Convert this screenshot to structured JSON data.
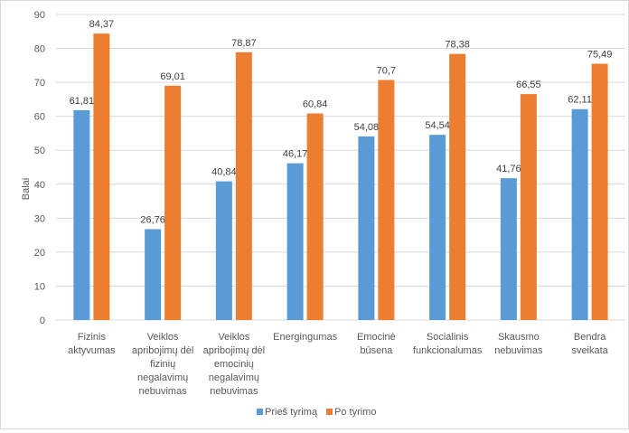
{
  "chart_data": {
    "type": "bar",
    "title": "",
    "xlabel": "",
    "ylabel": "Balai",
    "ylim": [
      0,
      90
    ],
    "y_ticks": [
      0,
      10,
      20,
      30,
      40,
      50,
      60,
      70,
      80,
      90
    ],
    "grid": true,
    "legend_position": "bottom",
    "categories": [
      [
        "Fizinis",
        "aktyvumas"
      ],
      [
        "Veiklos",
        "apribojimų dėl",
        "fizinių",
        "negalavimų",
        "nebuvimas"
      ],
      [
        "Veiklos",
        "apribojimų dėl",
        "emocinių",
        "negalavimų",
        "nebuvimas"
      ],
      [
        "Energingumas"
      ],
      [
        "Emocinė",
        "būsena"
      ],
      [
        "Socialinis",
        "funkcionalumas"
      ],
      [
        "Skausmo",
        "nebuvimas"
      ],
      [
        "Bendra",
        "sveikata"
      ]
    ],
    "series": [
      {
        "name": "Prieš tyrimą",
        "color": "#5b9bd5",
        "values": [
          61.81,
          26.76,
          40.84,
          46.17,
          54.08,
          54.54,
          41.76,
          62.11
        ],
        "labels": [
          "61,81",
          "26,76",
          "40,84",
          "46,17",
          "54,08",
          "54,54",
          "41,76",
          "62,11"
        ]
      },
      {
        "name": "Po tyrimo",
        "color": "#ed7d31",
        "values": [
          84.37,
          69.01,
          78.87,
          60.84,
          70.7,
          78.38,
          66.55,
          75.49
        ],
        "labels": [
          "84,37",
          "69,01",
          "78,87",
          "60,84",
          "70,7",
          "78,38",
          "66,55",
          "75,49"
        ]
      }
    ]
  }
}
